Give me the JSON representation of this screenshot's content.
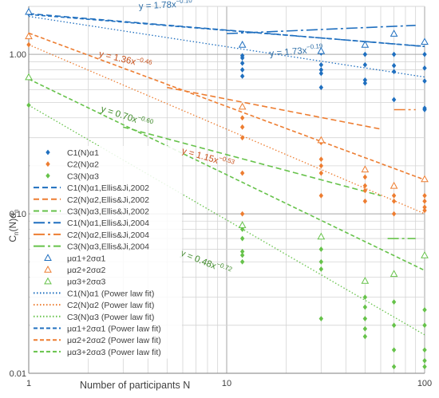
{
  "chart_data": {
    "type": "scatter",
    "title": "",
    "xlabel": "Number of participants N",
    "ylabel": "C",
    "ylabel_sub1": "n",
    "ylabel_mid": "(N)α",
    "ylabel_sub2": "n",
    "x_scale": "log",
    "y_scale": "log",
    "xlim": [
      1,
      100
    ],
    "ylim": [
      0.01,
      2
    ],
    "x_ticks": [
      {
        "value": 1,
        "label": "1"
      },
      {
        "value": 10,
        "label": "10"
      },
      {
        "value": 100,
        "label": "100"
      }
    ],
    "y_ticks": [
      {
        "value": 0.01,
        "label": "0.01"
      },
      {
        "value": 0.1,
        "label": "0.10"
      },
      {
        "value": 1,
        "label": "1.00"
      }
    ],
    "grid": true,
    "legend_placement": "left",
    "colors": {
      "c1": "#1f6fbf",
      "c2": "#ed7d31",
      "c3": "#66c24a",
      "eq1": "#2f6fa8",
      "eq2": "#c8501a",
      "eq3": "#3f8a2a",
      "grid": "#d4d4d4",
      "axis": "#7f7f7f"
    },
    "series": [
      {
        "name": "C1(N)α1",
        "marker": "diamond",
        "color": "#1f6fbf",
        "points": [
          [
            1,
            1.8
          ],
          [
            12,
            0.98
          ],
          [
            12,
            0.95
          ],
          [
            12,
            0.88
          ],
          [
            12,
            0.8
          ],
          [
            12,
            0.73
          ],
          [
            30,
            1.02
          ],
          [
            30,
            0.86
          ],
          [
            30,
            0.8
          ],
          [
            30,
            0.76
          ],
          [
            30,
            0.62
          ],
          [
            50,
            1.0
          ],
          [
            50,
            0.86
          ],
          [
            50,
            0.69
          ],
          [
            50,
            0.66
          ],
          [
            70,
            1.0
          ],
          [
            70,
            0.85
          ],
          [
            70,
            0.78
          ],
          [
            70,
            0.52
          ],
          [
            100,
            1.0
          ],
          [
            100,
            0.82
          ],
          [
            100,
            0.68
          ],
          [
            100,
            0.46
          ],
          [
            100,
            0.45
          ]
        ]
      },
      {
        "name": "C2(N)α2",
        "marker": "diamond",
        "color": "#ed7d31",
        "points": [
          [
            1,
            1.15
          ],
          [
            12,
            0.4
          ],
          [
            12,
            0.35
          ],
          [
            12,
            0.3
          ],
          [
            12,
            0.18
          ],
          [
            12,
            0.1
          ],
          [
            30,
            0.28
          ],
          [
            30,
            0.22
          ],
          [
            30,
            0.2
          ],
          [
            30,
            0.18
          ],
          [
            30,
            0.13
          ],
          [
            50,
            0.17
          ],
          [
            50,
            0.15
          ],
          [
            50,
            0.14
          ],
          [
            50,
            0.12
          ],
          [
            70,
            0.15
          ],
          [
            70,
            0.13
          ],
          [
            70,
            0.12
          ],
          [
            70,
            0.1
          ],
          [
            100,
            0.13
          ],
          [
            100,
            0.12
          ],
          [
            100,
            0.11
          ],
          [
            100,
            0.105
          ]
        ]
      },
      {
        "name": "C3(N)α3",
        "marker": "diamond",
        "color": "#66c24a",
        "points": [
          [
            1,
            0.48
          ],
          [
            12,
            0.08
          ],
          [
            12,
            0.07
          ],
          [
            12,
            0.058
          ],
          [
            12,
            0.055
          ],
          [
            12,
            0.05
          ],
          [
            30,
            0.06
          ],
          [
            30,
            0.05
          ],
          [
            30,
            0.045
          ],
          [
            30,
            0.022
          ],
          [
            50,
            0.03
          ],
          [
            50,
            0.026
          ],
          [
            50,
            0.022
          ],
          [
            50,
            0.019
          ],
          [
            50,
            0.017
          ],
          [
            70,
            0.028
          ],
          [
            70,
            0.02
          ],
          [
            70,
            0.014
          ],
          [
            70,
            0.011
          ],
          [
            100,
            0.025
          ],
          [
            100,
            0.02
          ],
          [
            100,
            0.014
          ],
          [
            100,
            0.012
          ],
          [
            100,
            0.011
          ]
        ]
      },
      {
        "name": "μα1+2σα1",
        "marker": "triangle",
        "color": "#1f6fbf",
        "points": [
          [
            1,
            1.85
          ],
          [
            12,
            1.15
          ],
          [
            30,
            1.05
          ],
          [
            50,
            1.15
          ],
          [
            70,
            1.35
          ],
          [
            100,
            1.2
          ]
        ]
      },
      {
        "name": "μα2+2σα2",
        "marker": "triangle",
        "color": "#ed7d31",
        "points": [
          [
            1,
            1.3
          ],
          [
            12,
            0.47
          ],
          [
            30,
            0.29
          ],
          [
            50,
            0.19
          ],
          [
            70,
            0.15
          ],
          [
            100,
            0.165
          ]
        ]
      },
      {
        "name": "μα3+2σα3",
        "marker": "triangle",
        "color": "#66c24a",
        "points": [
          [
            1,
            0.72
          ],
          [
            12,
            0.085
          ],
          [
            30,
            0.072
          ],
          [
            50,
            0.038
          ],
          [
            70,
            0.042
          ],
          [
            100,
            0.055
          ]
        ]
      }
    ],
    "lines": [
      {
        "name": "C1(N)α1,Ellis&Ji,2002",
        "color": "#1f6fbf",
        "dash": "7,4",
        "width": 1.6,
        "points": [
          [
            1,
            1.8
          ],
          [
            100,
            1.12
          ]
        ]
      },
      {
        "name": "C2(N)α2,Ellis&Ji,2002",
        "color": "#ed7d31",
        "dash": "7,4",
        "width": 1.6,
        "points": [
          [
            5,
            0.62
          ],
          [
            60,
            0.34
          ]
        ]
      },
      {
        "name": "C3(N)α3,Ellis&Ji,2002",
        "color": "#66c24a",
        "dash": "7,4",
        "width": 1.6,
        "points": [
          [
            3,
            0.35
          ],
          [
            60,
            0.13
          ]
        ]
      },
      {
        "name": "C1(N)α1,Ellis&Ji,2004",
        "color": "#1f6fbf",
        "dash": "14,4,3,4",
        "width": 1.6,
        "points": [
          [
            10,
            1.35
          ],
          [
            90,
            1.52
          ]
        ]
      },
      {
        "name": "C2(N)α2,Ellis&Ji,2004",
        "color": "#ed7d31",
        "dash": "14,4,3,4",
        "width": 1.6,
        "points": [
          [
            70,
            0.45
          ],
          [
            90,
            0.45
          ]
        ]
      },
      {
        "name": "C3(N)α3,Ellis&Ji,2004",
        "color": "#66c24a",
        "dash": "14,4,3,4",
        "width": 1.6,
        "points": [
          [
            65,
            0.07
          ],
          [
            90,
            0.07
          ]
        ]
      },
      {
        "name": "C1(N)α1 (Power law fit)",
        "color": "#1f6fbf",
        "dash": "1.5,2.5",
        "width": 1.3,
        "fit": [
          1.73,
          -0.19
        ]
      },
      {
        "name": "C2(N)α2 (Power law fit)",
        "color": "#ed7d31",
        "dash": "1.5,2.5",
        "width": 1.3,
        "fit": [
          1.15,
          -0.53
        ]
      },
      {
        "name": "C3(N)α3 (Power law fit)",
        "color": "#66c24a",
        "dash": "1.5,2.5",
        "width": 1.3,
        "fit": [
          0.48,
          -0.72
        ]
      },
      {
        "name": "μα1+2σα1 (Power law fit)",
        "color": "#1f6fbf",
        "dash": "5,3",
        "width": 1.6,
        "fit": [
          1.78,
          -0.1
        ]
      },
      {
        "name": "μα2+2σα2 (Power law fit)",
        "color": "#ed7d31",
        "dash": "5,3",
        "width": 1.6,
        "fit": [
          1.36,
          -0.46
        ]
      },
      {
        "name": "μα3+2σα3 (Power law fit)",
        "color": "#66c24a",
        "dash": "5,3",
        "width": 1.6,
        "fit": [
          0.7,
          -0.6
        ]
      }
    ],
    "annotations": [
      {
        "base": "y = 1.78x",
        "exp": "−0.10",
        "color": "#2f6fa8",
        "anchor": [
          3.6,
          1.92
        ],
        "angle": -3
      },
      {
        "base": "y = 1.73x",
        "exp": "−0.19",
        "color": "#2f6fa8",
        "anchor": [
          16.5,
          0.97
        ],
        "angle": -5
      },
      {
        "base": "y = 1.36x",
        "exp": "−0.46",
        "color": "#c8501a",
        "anchor": [
          2.25,
          0.97
        ],
        "angle": 13
      },
      {
        "base": "y = 1.15x",
        "exp": "−0.53",
        "color": "#c8501a",
        "anchor": [
          5.9,
          0.24
        ],
        "angle": 16
      },
      {
        "base": "y = 0.70x",
        "exp": "−0.60",
        "color": "#3f8a2a",
        "anchor": [
          2.3,
          0.44
        ],
        "angle": 18
      },
      {
        "base": "y = 0.48x",
        "exp": "−0.72",
        "color": "#3f8a2a",
        "anchor": [
          5.8,
          0.055
        ],
        "angle": 22
      }
    ],
    "legend": [
      {
        "label": "C1(N)α1",
        "kind": "diamond",
        "color": "#1f6fbf"
      },
      {
        "label": "C2(N)α2",
        "kind": "diamond",
        "color": "#ed7d31"
      },
      {
        "label": "C3(N)α3",
        "kind": "diamond",
        "color": "#66c24a"
      },
      {
        "label": "C1(N)α1,Ellis&Ji,2002",
        "kind": "line",
        "dash": "7,4",
        "color": "#1f6fbf"
      },
      {
        "label": "C2(N)α2,Ellis&Ji,2002",
        "kind": "line",
        "dash": "7,4",
        "color": "#ed7d31"
      },
      {
        "label": "C3(N)α3,Ellis&Ji,2002",
        "kind": "line",
        "dash": "7,4",
        "color": "#66c24a"
      },
      {
        "label": "C1(N)α1,Ellis&Ji,2004",
        "kind": "line",
        "dash": "14,4,3,4",
        "color": "#1f6fbf"
      },
      {
        "label": "C2(N)α2,Ellis&Ji,2004",
        "kind": "line",
        "dash": "14,4,3,4",
        "color": "#ed7d31"
      },
      {
        "label": "C3(N)α3,Ellis&Ji,2004",
        "kind": "line",
        "dash": "14,4,3,4",
        "color": "#66c24a"
      },
      {
        "label": "μα1+2σα1",
        "kind": "triangle",
        "color": "#1f6fbf"
      },
      {
        "label": "μα2+2σα2",
        "kind": "triangle",
        "color": "#ed7d31"
      },
      {
        "label": "μα3+2σα3",
        "kind": "triangle",
        "color": "#66c24a"
      },
      {
        "label": "C1(N)α1 (Power law fit)",
        "kind": "line",
        "dash": "1.5,2.5",
        "color": "#1f6fbf"
      },
      {
        "label": "C2(N)α2 (Power law fit)",
        "kind": "line",
        "dash": "1.5,2.5",
        "color": "#ed7d31"
      },
      {
        "label": "C3(N)α3 (Power law fit)",
        "kind": "line",
        "dash": "1.5,2.5",
        "color": "#66c24a"
      },
      {
        "label": "μα1+2σα1 (Power law fit)",
        "kind": "line",
        "dash": "5,3",
        "color": "#1f6fbf"
      },
      {
        "label": "μα2+2σα2 (Power law fit)",
        "kind": "line",
        "dash": "5,3",
        "color": "#ed7d31"
      },
      {
        "label": "μα3+2σα3 (Power law fit)",
        "kind": "line",
        "dash": "5,3",
        "color": "#66c24a"
      }
    ]
  }
}
